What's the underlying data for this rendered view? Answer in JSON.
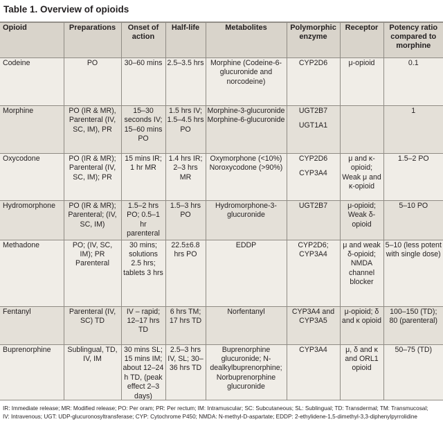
{
  "title": "Table 1. Overview of opioids",
  "headers": [
    "Opioid",
    "Preparations",
    "Onset of action",
    "Half-life",
    "Metabolites",
    "Polymorphic enzyme",
    "Receptor",
    "Potency ratio compared to morphine"
  ],
  "rows": [
    {
      "opioid": "Codeine",
      "preparations": "PO",
      "onset": "30–60 mins",
      "half_life": "2.5–3.5 hrs",
      "metabolites": "Morphine (Codeine-6-glucuronide and norcodeine)",
      "enzyme": "CYP2D6",
      "receptor": "μ-opioid",
      "potency": "0.1"
    },
    {
      "opioid": "Morphine",
      "preparations": "PO (IR & MR), Parenteral (IV, SC, IM), PR",
      "onset": "15–30 seconds IV; 15–60 mins PO",
      "half_life": "1.5 hrs IV; 1.5–4.5 hrs PO",
      "metabolites": "Morphine-3-glucuronide",
      "metabolites_2": "Morphine-6-glucuronide",
      "enzyme": "UGT2B7",
      "enzyme_2": "UGT1A1",
      "receptor": "",
      "potency": "1"
    },
    {
      "opioid": "Oxycodone",
      "preparations": "PO (IR & MR); Parenteral (IV, SC, IM); PR",
      "onset": "15 mins IR; 1 hr MR",
      "half_life": "1.4 hrs IR; 2–3 hrs MR",
      "metabolites": "Oxymorphone (<10%)",
      "metabolites_2": "Noroxycodone (>90%)",
      "enzyme": "CYP2D6",
      "enzyme_2": "CYP3A4",
      "receptor": "μ and κ-opioid; Weak μ and κ-opioid",
      "potency": "1.5–2 PO"
    },
    {
      "opioid": "Hydromorphone",
      "preparations": "PO (IR & MR); Parenteral; (IV, SC, IM)",
      "onset": "1.5–2 hrs PO; 0.5–1 hr parenteral",
      "half_life": "1.5–3 hrs PO",
      "metabolites": "Hydromorphone-3-glucuronide",
      "enzyme": "UGT2B7",
      "receptor": "μ-opioid; Weak δ-opioid",
      "potency": "5–10 PO"
    },
    {
      "opioid": "Methadone",
      "preparations": "PO; (IV, SC, IM); PR Parenteral",
      "onset": "30 mins; solutions 2.5 hrs; tablets 3 hrs",
      "half_life": "22.5±6.8 hrs PO",
      "metabolites": "EDDP",
      "enzyme": "CYP2D6; CYP3A4",
      "receptor": "μ and weak δ-opioid; NMDA channel blocker",
      "potency": "5–10 (less potent with single dose)"
    },
    {
      "opioid": "Fentanyl",
      "preparations": "Parenteral (IV, SC) TD",
      "onset": "IV – rapid; 12–17 hrs TD",
      "half_life": "6 hrs TM; 17 hrs TD",
      "metabolites": "Norfentanyl",
      "enzyme": "CYP3A4 and CYP3A5",
      "receptor": "μ-opioid; δ and κ opioid",
      "potency": "100–150 (TD); 80 (parenteral)"
    },
    {
      "opioid": "Buprenorphine",
      "preparations": "Sublingual, TD, IV, IM",
      "onset": "30 mins SL; 15 mins IM; about 12–24 h TD, (peak effect 2–3 days)",
      "half_life": "2.5–3 hrs IV, SL; 30–36 hrs TD",
      "metabolites": "Buprenorphine glucuronide; N-dealkylbuprenorphine; Norbuprenorphine glucuronide",
      "enzyme": "CYP3A4",
      "receptor": "μ, δ and κ and ORL1 opioid",
      "potency": "50–75 (TD)"
    }
  ],
  "footnote_1": "IR: Immediate release; MR: Modified release; PO: Per oram; PR: Per rectum; IM: Intramuscular; SC: Subcutaneous; SL: Sublingual; TD: Transdermal; TM: Transmucosal;",
  "footnote_2": "IV: Intravenous; UGT: UDP-glucuronosyltransferase; CYP: Cytochrome P450; NMDA: N-methyl-D-aspartate; EDDP: 2-ethylidene-1,5-dimethyl-3,3-diphenylpyrrolidine"
}
